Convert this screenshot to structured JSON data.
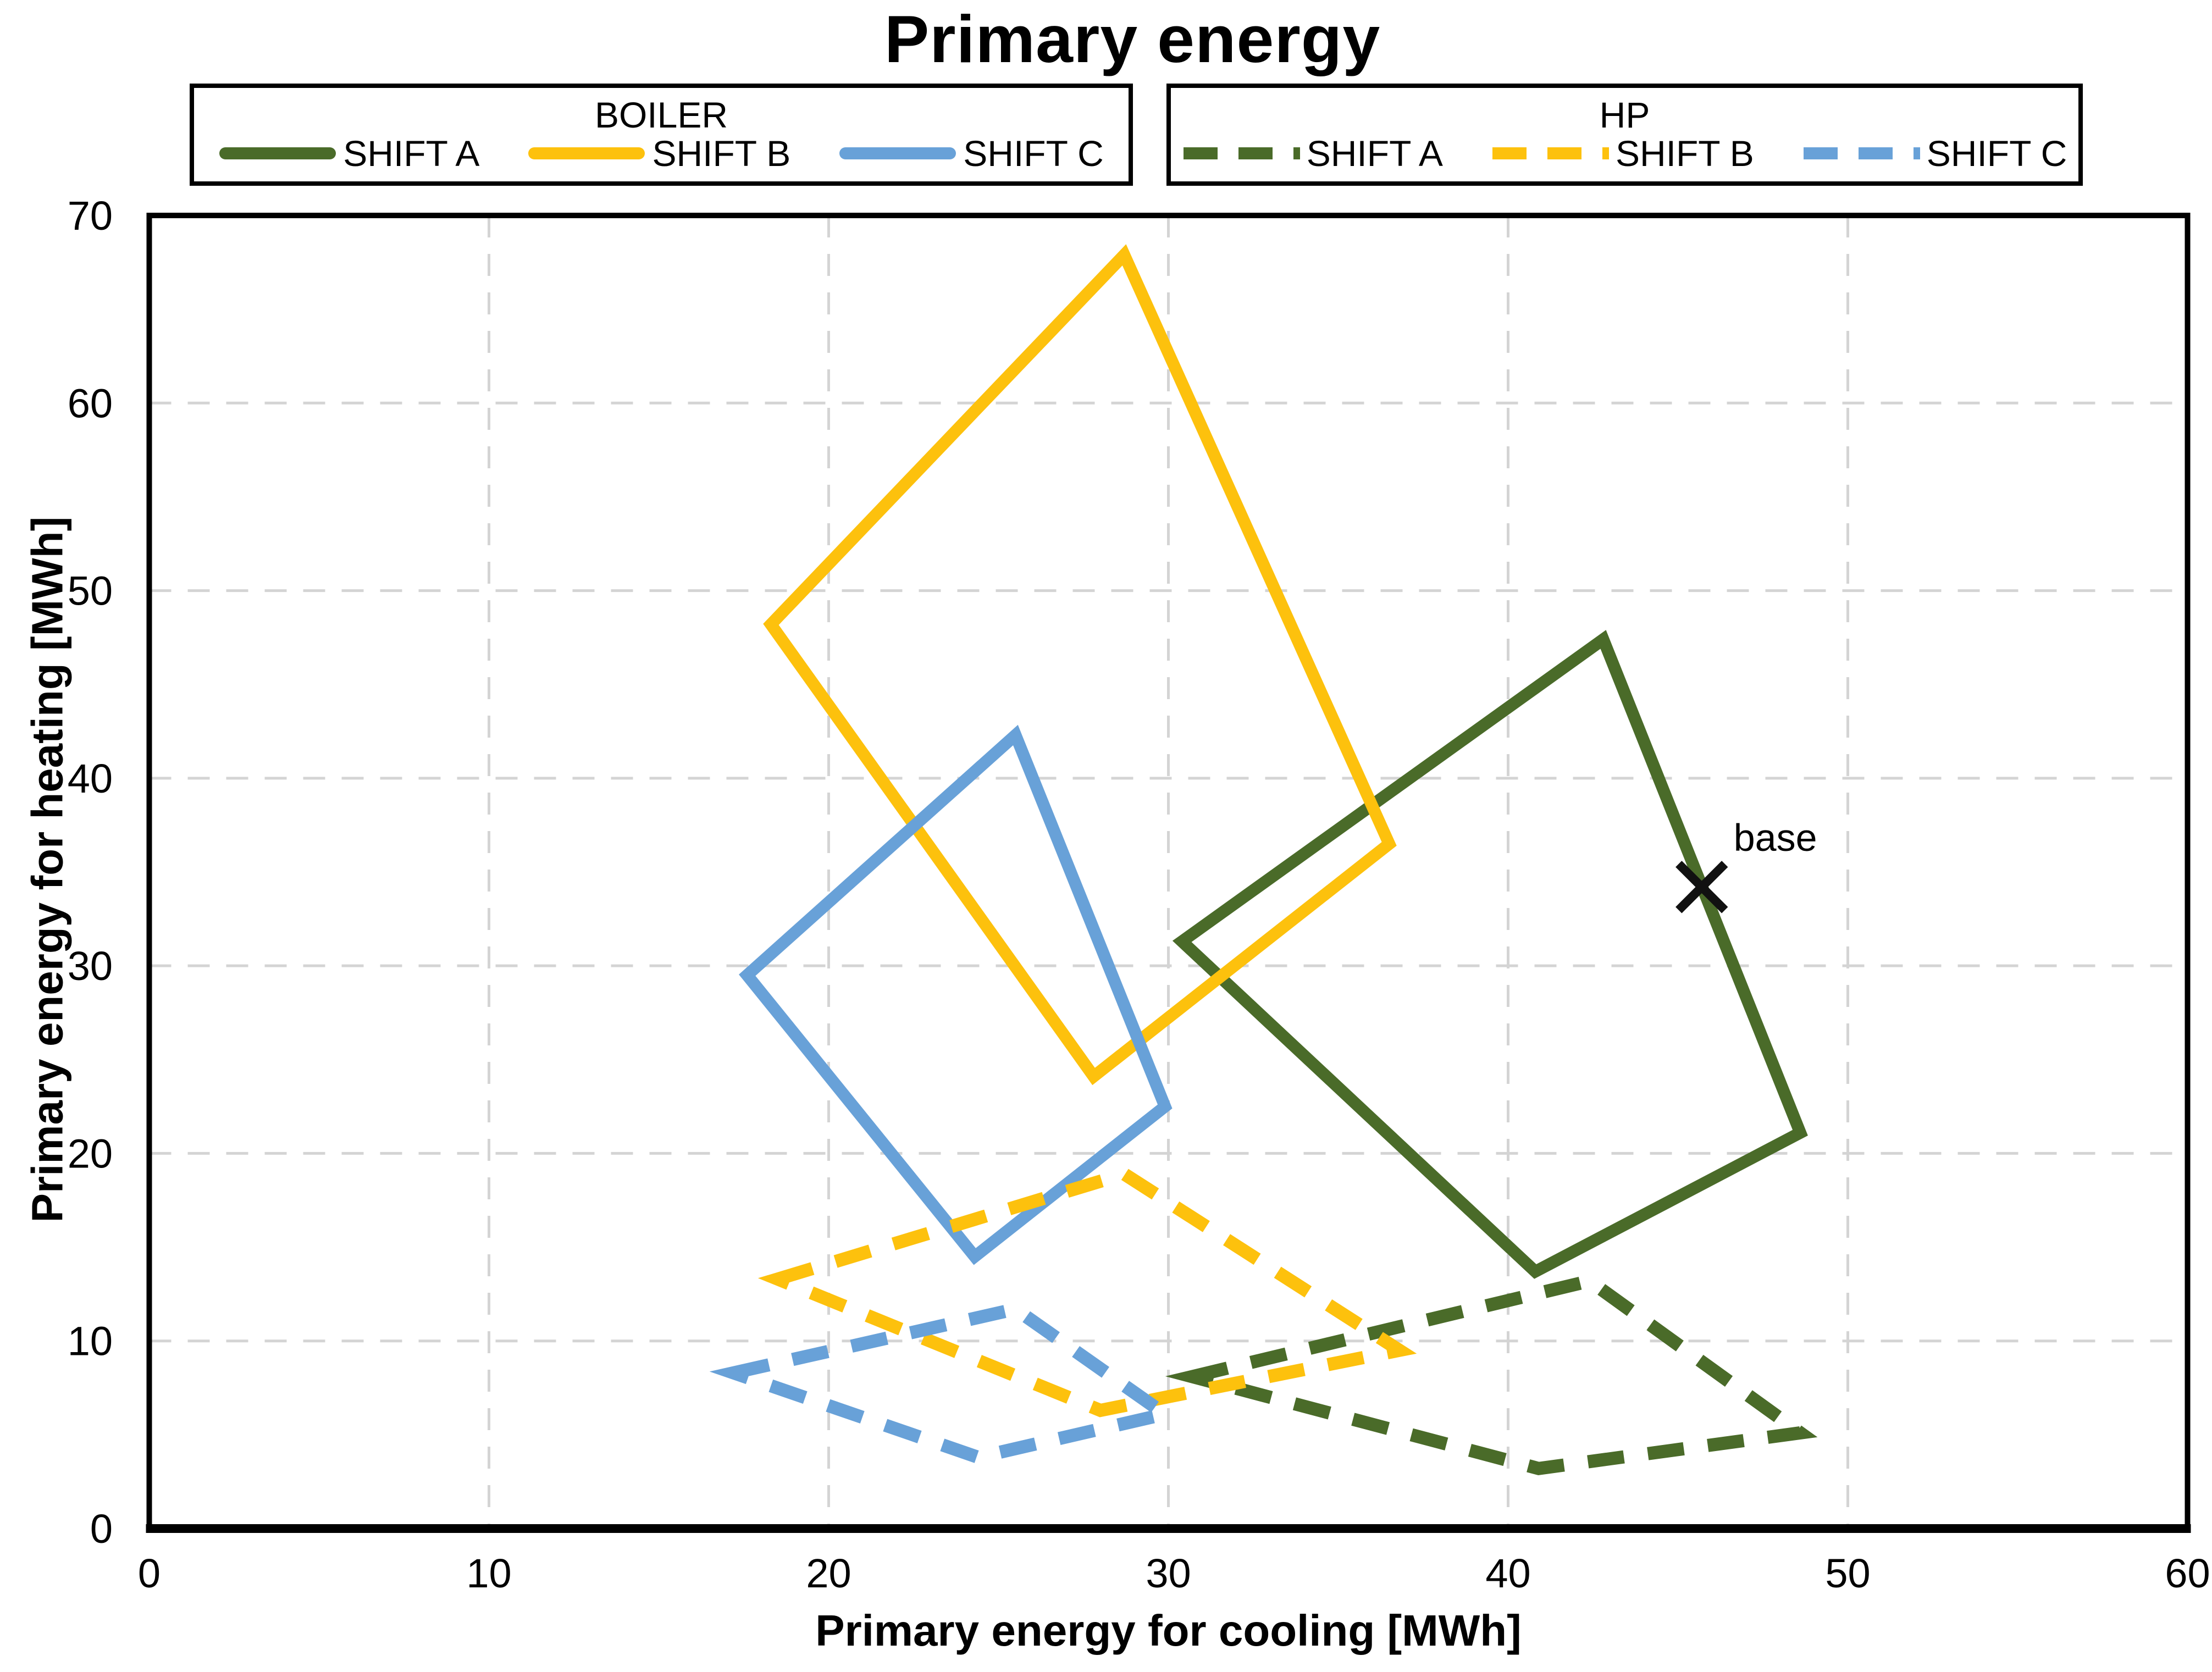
{
  "title": "Primary energy",
  "legend": {
    "groups": [
      {
        "title": "BOILER",
        "style": "solid",
        "items": [
          {
            "label": "SHIFT A",
            "series": "boiler_shift_a",
            "color_key": "green"
          },
          {
            "label": "SHIFT B",
            "series": "boiler_shift_b",
            "color_key": "yellow"
          },
          {
            "label": "SHIFT C",
            "series": "boiler_shift_c",
            "color_key": "blue"
          }
        ]
      },
      {
        "title": "HP",
        "style": "dashed",
        "items": [
          {
            "label": "SHIFT A",
            "series": "hp_shift_a",
            "color_key": "green"
          },
          {
            "label": "SHIFT B",
            "series": "hp_shift_b",
            "color_key": "yellow"
          },
          {
            "label": "SHIFT C",
            "series": "hp_shift_c",
            "color_key": "blue"
          }
        ]
      }
    ]
  },
  "colors": {
    "green": "#4A6B29",
    "yellow": "#FDC10D",
    "blue": "#68A1D8",
    "grid": "#D4D4D4",
    "axis": "#000000",
    "text": "#000000"
  },
  "chart_data": {
    "type": "line",
    "title": "Primary energy",
    "xlabel": "Primary energy for cooling [MWh]",
    "ylabel": "Primary energy for heating [MWh]",
    "xlim": [
      0,
      60
    ],
    "ylim": [
      0,
      70
    ],
    "x_ticks": [
      0,
      10,
      20,
      30,
      40,
      50,
      60
    ],
    "y_ticks": [
      0,
      10,
      20,
      30,
      40,
      50,
      60,
      70
    ],
    "grid": "dashed",
    "legend_position": "top",
    "series": [
      {
        "id": "boiler_shift_a",
        "group": "BOILER",
        "label": "SHIFT A",
        "style": "solid",
        "color_key": "green",
        "closed": true,
        "points": [
          [
            30.4,
            31.3
          ],
          [
            42.8,
            47.4
          ],
          [
            48.6,
            21.1
          ],
          [
            40.8,
            13.7
          ]
        ]
      },
      {
        "id": "boiler_shift_b",
        "group": "BOILER",
        "label": "SHIFT B",
        "style": "solid",
        "color_key": "yellow",
        "closed": true,
        "points": [
          [
            18.3,
            48.2
          ],
          [
            28.7,
            67.9
          ],
          [
            36.5,
            36.5
          ],
          [
            27.8,
            24.1
          ]
        ]
      },
      {
        "id": "boiler_shift_c",
        "group": "BOILER",
        "label": "SHIFT C",
        "style": "solid",
        "color_key": "blue",
        "closed": true,
        "points": [
          [
            17.6,
            29.5
          ],
          [
            25.5,
            42.3
          ],
          [
            29.9,
            22.5
          ],
          [
            24.3,
            14.5
          ]
        ]
      },
      {
        "id": "hp_shift_a",
        "group": "HP",
        "label": "SHIFT A",
        "style": "dashed",
        "color_key": "green",
        "closed": true,
        "points": [
          [
            30.7,
            8.1
          ],
          [
            42.4,
            13.2
          ],
          [
            48.6,
            5.1
          ],
          [
            40.9,
            3.2
          ]
        ]
      },
      {
        "id": "hp_shift_b",
        "group": "HP",
        "label": "SHIFT B",
        "style": "dashed",
        "color_key": "yellow",
        "closed": true,
        "points": [
          [
            18.5,
            13.3
          ],
          [
            28.7,
            18.9
          ],
          [
            36.8,
            9.5
          ],
          [
            28.0,
            6.3
          ]
        ]
      },
      {
        "id": "hp_shift_c",
        "group": "HP",
        "label": "SHIFT C",
        "style": "dashed",
        "color_key": "blue",
        "closed": true,
        "points": [
          [
            17.2,
            8.3
          ],
          [
            25.5,
            11.7
          ],
          [
            29.9,
            6.1
          ],
          [
            24.4,
            3.8
          ]
        ]
      }
    ],
    "annotations": [
      {
        "id": "base",
        "label": "base",
        "x": 45.7,
        "y": 34.2,
        "marker": "x"
      }
    ]
  }
}
